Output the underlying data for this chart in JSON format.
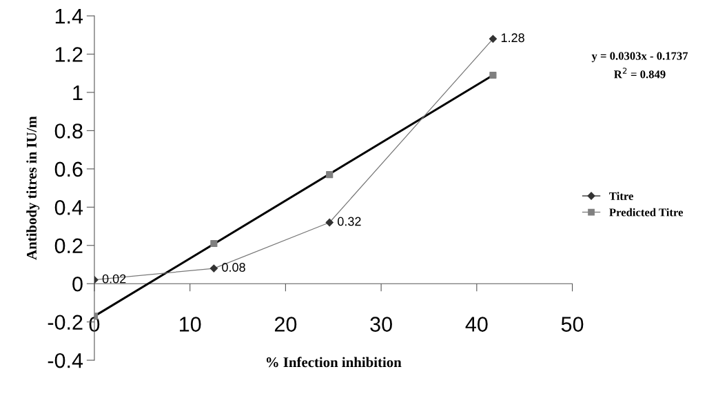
{
  "chart_data": {
    "type": "line",
    "xlabel": "% Infection inhibition",
    "ylabel": "Antibody titres in IU/m",
    "xlim": [
      0,
      50
    ],
    "xticks": [
      0,
      10,
      20,
      30,
      40,
      50
    ],
    "ylim": [
      -0.4,
      1.4
    ],
    "yticks": [
      -0.4,
      -0.2,
      0,
      0.2,
      0.4,
      0.6,
      0.8,
      1,
      1.2,
      1.4
    ],
    "grid": false,
    "legend": "right",
    "series": [
      {
        "name": "Titre",
        "type": "line",
        "marker": "diamond",
        "color": "#333333",
        "x": [
          0,
          12.5,
          24.6,
          41.7
        ],
        "values": [
          0.02,
          0.08,
          0.32,
          1.28
        ],
        "value_labels": [
          "0.02",
          "0.08",
          "0.32",
          "1.28"
        ]
      },
      {
        "name": "Predicted Titre",
        "type": "scatter",
        "marker": "square",
        "color": "#808080",
        "x": [
          0,
          12.5,
          24.6,
          41.7
        ],
        "values": [
          -0.17,
          0.21,
          0.57,
          1.09
        ]
      },
      {
        "marker": "none",
        "color": "#000000",
        "x": [
          0,
          41.7
        ],
        "values": [
          -0.17,
          1.09
        ]
      }
    ],
    "annotations": [
      "y = 0.0303x - 0.1737",
      "R$^{2}$ = 0.849"
    ]
  }
}
